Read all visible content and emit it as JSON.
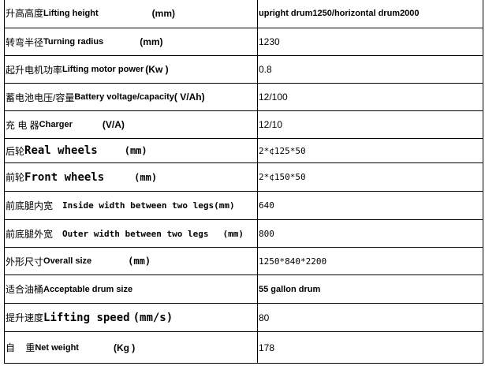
{
  "rows": [
    {
      "zh": "升高高度",
      "en": "Lifting height",
      "unit": "(mm)",
      "value": "upright drum1250/horizontal drum2000"
    },
    {
      "zh": "转弯半径",
      "en": "Turning radius",
      "unit": "(mm)",
      "value": "1230"
    },
    {
      "zh": "起升电机功率",
      "en": "Lifting motor power",
      "unit": "(Kw )",
      "value": "0.8"
    },
    {
      "zh": "蓄电池电压/容量",
      "en": "Battery voltage/capacity",
      "unit": "( V/Ah)",
      "value": "12/100"
    },
    {
      "zh": "充 电 器",
      "en": "Charger",
      "unit": "(V/A)",
      "value": "12/10"
    },
    {
      "zh": "后轮",
      "en": "Real wheels",
      "unit": "(mm)",
      "value": "2*¢125*50"
    },
    {
      "zh": "前轮",
      "en": "Front wheels",
      "unit": "(mm)",
      "value": "2*¢150*50"
    },
    {
      "zh": "前底腿内宽",
      "en": "Inside width between two legs",
      "unit": "(mm)",
      "value": "640"
    },
    {
      "zh": "前底腿外宽",
      "en": "Outer width between two legs",
      "unit": "(mm)",
      "value": "800"
    },
    {
      "zh": "外形尺寸",
      "en": "Overall size",
      "unit": "(mm)",
      "value": "1250*840*2200"
    },
    {
      "zh": "适合油桶",
      "en": "Acceptable drum size",
      "unit": "",
      "value": "55 gallon drum"
    },
    {
      "zh": "提升速度",
      "en": "Lifting speed",
      "unit": "(mm/s)",
      "value": "80"
    },
    {
      "zh": "自    重",
      "en": "Net weight",
      "unit": "(Kg )",
      "value": "178"
    }
  ]
}
